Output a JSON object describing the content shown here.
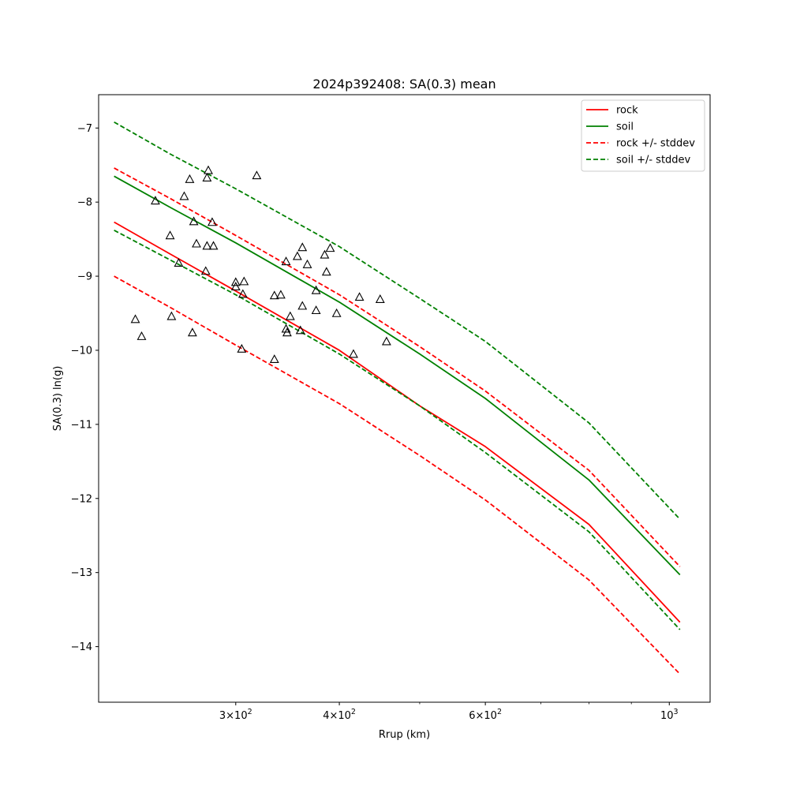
{
  "chart_data": {
    "type": "line",
    "title": "2024p392408: SA(0.3) mean",
    "xlabel": "Rrup (km)",
    "ylabel": "SA(0.3) ln(g)",
    "xscale": "log",
    "xlim": [
      205,
      1120
    ],
    "ylim": [
      -14.75,
      -6.55
    ],
    "x_ticks": [
      {
        "value": 300,
        "label": "3 × 10²"
      },
      {
        "value": 400,
        "label": "4 × 10²"
      },
      {
        "value": 600,
        "label": "6 × 10²"
      },
      {
        "value": 1000,
        "label": "10³"
      }
    ],
    "x_minor_ticks": [
      500,
      700,
      800,
      900
    ],
    "y_ticks": [
      -14,
      -13,
      -12,
      -11,
      -10,
      -9,
      -8,
      -7
    ],
    "grid": false,
    "legend_position": "top-right",
    "series": [
      {
        "name": "rock",
        "color": "#ff0000",
        "style": "solid",
        "x": [
          214,
          250,
          300,
          400,
          500,
          600,
          800,
          1030
        ],
        "y": [
          -8.27,
          -8.7,
          -9.2,
          -10.0,
          -10.75,
          -11.3,
          -12.35,
          -13.67
        ]
      },
      {
        "name": "soil",
        "color": "#008000",
        "style": "solid",
        "x": [
          214,
          250,
          300,
          400,
          500,
          600,
          800,
          1030
        ],
        "y": [
          -7.65,
          -8.07,
          -8.55,
          -9.35,
          -10.05,
          -10.65,
          -11.75,
          -13.03
        ]
      },
      {
        "name": "rock +/- stddev",
        "color": "#ff0000",
        "style": "dashed",
        "x": [
          214,
          250,
          300,
          400,
          500,
          600,
          800,
          1030
        ],
        "y": [
          -7.54,
          -7.95,
          -8.45,
          -9.25,
          -9.95,
          -10.55,
          -11.62,
          -12.92
        ]
      },
      {
        "name": "",
        "color": "#ff0000",
        "style": "dashed",
        "x": [
          214,
          250,
          300,
          400,
          500,
          600,
          800,
          1030
        ],
        "y": [
          -9.0,
          -9.42,
          -9.93,
          -10.72,
          -11.42,
          -12.02,
          -13.1,
          -14.37
        ]
      },
      {
        "name": "soil +/- stddev",
        "color": "#008000",
        "style": "dashed",
        "x": [
          214,
          250,
          300,
          400,
          500,
          600,
          800,
          1030
        ],
        "y": [
          -6.92,
          -7.35,
          -7.82,
          -8.6,
          -9.3,
          -9.88,
          -10.98,
          -12.28
        ]
      },
      {
        "name": "",
        "color": "#008000",
        "style": "dashed",
        "x": [
          214,
          250,
          300,
          400,
          500,
          600,
          800,
          1030
        ],
        "y": [
          -8.38,
          -8.78,
          -9.25,
          -10.05,
          -10.75,
          -11.38,
          -12.45,
          -13.77
        ]
      }
    ],
    "scatter": {
      "marker": "triangle",
      "color": "#000000",
      "points": [
        [
          227,
          -9.58
        ],
        [
          231,
          -9.81
        ],
        [
          240,
          -7.98
        ],
        [
          250,
          -8.45
        ],
        [
          251,
          -9.54
        ],
        [
          256,
          -8.82
        ],
        [
          260,
          -7.92
        ],
        [
          264,
          -7.69
        ],
        [
          266,
          -9.76
        ],
        [
          267,
          -8.26
        ],
        [
          269,
          -8.56
        ],
        [
          276,
          -8.93
        ],
        [
          277,
          -8.59
        ],
        [
          277,
          -7.67
        ],
        [
          278,
          -7.57
        ],
        [
          281,
          -8.27
        ],
        [
          282,
          -8.59
        ],
        [
          300,
          -9.08
        ],
        [
          300,
          -9.14
        ],
        [
          305,
          -9.98
        ],
        [
          306,
          -9.24
        ],
        [
          307,
          -9.07
        ],
        [
          318,
          -7.64
        ],
        [
          334,
          -9.26
        ],
        [
          334,
          -10.12
        ],
        [
          340,
          -9.25
        ],
        [
          345,
          -8.8
        ],
        [
          345,
          -9.71
        ],
        [
          346,
          -9.76
        ],
        [
          349,
          -9.54
        ],
        [
          356,
          -8.73
        ],
        [
          359,
          -9.73
        ],
        [
          361,
          -8.61
        ],
        [
          361,
          -9.4
        ],
        [
          366,
          -8.84
        ],
        [
          375,
          -9.19
        ],
        [
          375,
          -9.46
        ],
        [
          384,
          -8.71
        ],
        [
          386,
          -8.94
        ],
        [
          390,
          -8.62
        ],
        [
          397,
          -9.5
        ],
        [
          416,
          -10.05
        ],
        [
          423,
          -9.28
        ],
        [
          448,
          -9.31
        ],
        [
          456,
          -9.88
        ]
      ]
    }
  }
}
